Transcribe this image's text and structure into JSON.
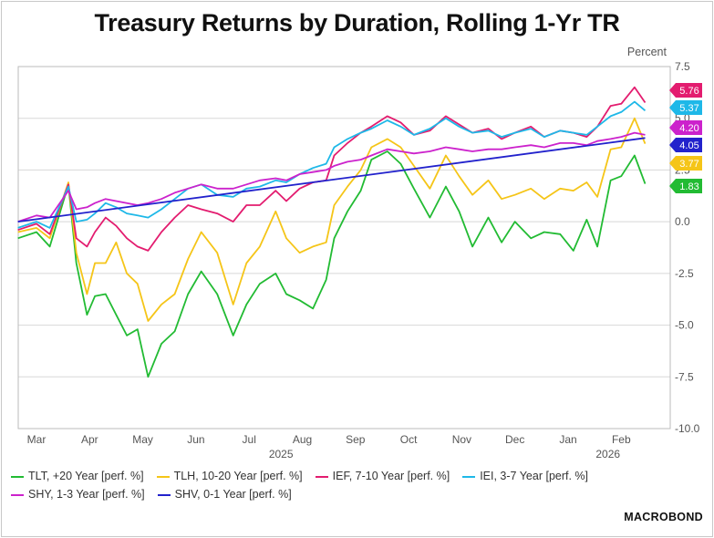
{
  "chart_data": {
    "type": "line",
    "title": "Treasury Returns by Duration, Rolling 1-Yr TR",
    "ylabel": "Percent",
    "ylim": [
      -10,
      7.5
    ],
    "yticks": [
      "7.5",
      "5.0",
      "2.5",
      "0.0",
      "-2.5",
      "-5.0",
      "-7.5",
      "-10.0"
    ],
    "xlabels": [
      "Mar",
      "Apr",
      "May",
      "Jun",
      "Jul",
      "Aug",
      "Sep",
      "Oct",
      "Nov",
      "Dec",
      "Jan",
      "Feb"
    ],
    "year_labels": [
      "2025",
      "2026"
    ],
    "x_month_positions": [
      0,
      1,
      2,
      3,
      4,
      5,
      6,
      7,
      8,
      9,
      10,
      11
    ],
    "series": [
      {
        "name": "TLT, +20 Year [perf. %]",
        "color": "#22bb33",
        "end_label": "1.83",
        "x": [
          -0.35,
          0,
          0.25,
          0.6,
          0.75,
          0.95,
          1.1,
          1.3,
          1.5,
          1.7,
          1.9,
          2.1,
          2.35,
          2.6,
          2.85,
          3.1,
          3.4,
          3.7,
          3.95,
          4.2,
          4.5,
          4.7,
          4.95,
          5.2,
          5.45,
          5.6,
          5.85,
          6.1,
          6.3,
          6.6,
          6.85,
          7.1,
          7.4,
          7.7,
          7.95,
          8.2,
          8.5,
          8.75,
          9.0,
          9.3,
          9.55,
          9.85,
          10.1,
          10.35,
          10.55,
          10.8,
          11.0,
          11.25,
          11.45
        ],
        "values": [
          -0.8,
          -0.5,
          -1.2,
          1.8,
          -2,
          -4.5,
          -3.6,
          -3.5,
          -4.5,
          -5.5,
          -5.2,
          -7.5,
          -5.9,
          -5.3,
          -3.5,
          -2.4,
          -3.5,
          -5.5,
          -4.0,
          -3.0,
          -2.5,
          -3.5,
          -3.8,
          -4.2,
          -2.8,
          -0.8,
          0.5,
          1.5,
          3.0,
          3.4,
          2.8,
          1.6,
          0.2,
          1.7,
          0.5,
          -1.2,
          0.2,
          -1.0,
          0.0,
          -0.8,
          -0.5,
          -0.6,
          -1.4,
          0.1,
          -1.2,
          2.0,
          2.2,
          3.2,
          1.83
        ]
      },
      {
        "name": "TLH, 10-20 Year [perf. %]",
        "color": "#f5c518",
        "end_label": "3.77",
        "x": [
          -0.35,
          0,
          0.25,
          0.6,
          0.75,
          0.95,
          1.1,
          1.3,
          1.5,
          1.7,
          1.9,
          2.1,
          2.35,
          2.6,
          2.85,
          3.1,
          3.4,
          3.7,
          3.95,
          4.2,
          4.5,
          4.7,
          4.95,
          5.2,
          5.45,
          5.6,
          5.85,
          6.1,
          6.3,
          6.6,
          6.85,
          7.1,
          7.4,
          7.7,
          7.95,
          8.2,
          8.5,
          8.75,
          9.0,
          9.3,
          9.55,
          9.85,
          10.1,
          10.35,
          10.55,
          10.8,
          11.0,
          11.25,
          11.45
        ],
        "values": [
          -0.5,
          -0.3,
          -0.8,
          1.9,
          -1.5,
          -3.5,
          -2.0,
          -2.0,
          -1.0,
          -2.5,
          -3.0,
          -4.8,
          -4.0,
          -3.5,
          -1.8,
          -0.5,
          -1.5,
          -4.0,
          -2.0,
          -1.2,
          0.5,
          -0.8,
          -1.5,
          -1.2,
          -1.0,
          0.8,
          1.7,
          2.5,
          3.6,
          4.0,
          3.6,
          2.7,
          1.6,
          3.2,
          2.2,
          1.3,
          2.0,
          1.1,
          1.3,
          1.6,
          1.1,
          1.6,
          1.5,
          1.9,
          1.2,
          3.5,
          3.6,
          5.0,
          3.77
        ]
      },
      {
        "name": "IEF, 7-10 Year [perf. %]",
        "color": "#e31c6f",
        "end_label": "5.76",
        "x": [
          -0.35,
          0,
          0.25,
          0.6,
          0.75,
          0.95,
          1.1,
          1.3,
          1.5,
          1.7,
          1.9,
          2.1,
          2.35,
          2.6,
          2.85,
          3.1,
          3.4,
          3.7,
          3.95,
          4.2,
          4.5,
          4.7,
          4.95,
          5.2,
          5.45,
          5.6,
          5.85,
          6.1,
          6.3,
          6.6,
          6.85,
          7.1,
          7.4,
          7.7,
          7.95,
          8.2,
          8.5,
          8.75,
          9.0,
          9.3,
          9.55,
          9.85,
          10.1,
          10.35,
          10.55,
          10.8,
          11.0,
          11.25,
          11.45
        ],
        "values": [
          -0.4,
          -0.1,
          -0.6,
          1.8,
          -0.8,
          -1.2,
          -0.5,
          0.2,
          -0.2,
          -0.8,
          -1.2,
          -1.4,
          -0.5,
          0.2,
          0.8,
          0.6,
          0.4,
          0.0,
          0.8,
          0.8,
          1.5,
          1.0,
          1.6,
          1.9,
          2.0,
          3.2,
          3.8,
          4.3,
          4.6,
          5.1,
          4.8,
          4.2,
          4.4,
          5.1,
          4.7,
          4.3,
          4.5,
          4.0,
          4.3,
          4.6,
          4.1,
          4.4,
          4.3,
          4.1,
          4.6,
          5.6,
          5.7,
          6.5,
          5.76
        ]
      },
      {
        "name": "IEI, 3-7 Year [perf. %]",
        "color": "#1eb8e8",
        "end_label": "5.37",
        "x": [
          -0.35,
          0,
          0.25,
          0.6,
          0.75,
          0.95,
          1.1,
          1.3,
          1.5,
          1.7,
          1.9,
          2.1,
          2.35,
          2.6,
          2.85,
          3.1,
          3.4,
          3.7,
          3.95,
          4.2,
          4.5,
          4.7,
          4.95,
          5.2,
          5.45,
          5.6,
          5.85,
          6.1,
          6.3,
          6.6,
          6.85,
          7.1,
          7.4,
          7.7,
          7.95,
          8.2,
          8.5,
          8.75,
          9.0,
          9.3,
          9.55,
          9.85,
          10.1,
          10.35,
          10.55,
          10.8,
          11.0,
          11.25,
          11.45
        ],
        "values": [
          -0.3,
          0.0,
          -0.3,
          1.7,
          0.0,
          0.1,
          0.4,
          0.9,
          0.7,
          0.4,
          0.3,
          0.2,
          0.6,
          1.1,
          1.6,
          1.8,
          1.3,
          1.2,
          1.6,
          1.7,
          2.0,
          1.9,
          2.3,
          2.6,
          2.8,
          3.6,
          4.0,
          4.3,
          4.5,
          4.9,
          4.6,
          4.2,
          4.5,
          5.0,
          4.6,
          4.3,
          4.4,
          4.1,
          4.3,
          4.5,
          4.1,
          4.4,
          4.3,
          4.2,
          4.6,
          5.1,
          5.3,
          5.8,
          5.37
        ]
      },
      {
        "name": "SHY, 1-3 Year [perf. %]",
        "color": "#cc22cc",
        "end_label": "4.20",
        "x": [
          -0.35,
          0,
          0.25,
          0.6,
          0.75,
          0.95,
          1.1,
          1.3,
          1.5,
          1.7,
          1.9,
          2.1,
          2.35,
          2.6,
          2.85,
          3.1,
          3.4,
          3.7,
          3.95,
          4.2,
          4.5,
          4.7,
          4.95,
          5.2,
          5.45,
          5.6,
          5.85,
          6.1,
          6.3,
          6.6,
          6.85,
          7.1,
          7.4,
          7.7,
          7.95,
          8.2,
          8.5,
          8.75,
          9.0,
          9.3,
          9.55,
          9.85,
          10.1,
          10.35,
          10.55,
          10.8,
          11.0,
          11.25,
          11.45
        ],
        "values": [
          0.0,
          0.3,
          0.2,
          1.5,
          0.6,
          0.7,
          0.9,
          1.1,
          1.0,
          0.9,
          0.8,
          0.9,
          1.1,
          1.4,
          1.6,
          1.8,
          1.6,
          1.6,
          1.8,
          2.0,
          2.1,
          2.0,
          2.3,
          2.4,
          2.5,
          2.7,
          2.9,
          3.0,
          3.2,
          3.5,
          3.4,
          3.3,
          3.4,
          3.6,
          3.5,
          3.4,
          3.5,
          3.5,
          3.6,
          3.7,
          3.6,
          3.8,
          3.8,
          3.7,
          3.9,
          4.0,
          4.1,
          4.3,
          4.2
        ]
      },
      {
        "name": "SHV, 0-1 Year [perf. %]",
        "color": "#2222cc",
        "end_label": "4.05",
        "x": [
          -0.35,
          11.45
        ],
        "values": [
          0.0,
          4.05
        ]
      }
    ]
  },
  "logo": {
    "text": "MACROBOND"
  }
}
